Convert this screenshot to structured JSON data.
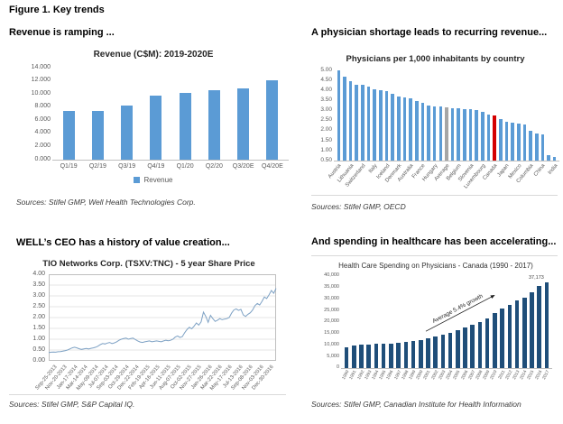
{
  "figure_title": "Figure 1. Key trends",
  "quadrants": {
    "revenue": {
      "heading": "Revenue is ramping ...",
      "source": "Sources: Stifel GMP, Well Health Technologies Corp."
    },
    "physicians": {
      "heading": "A physician shortage leads to recurring revenue...",
      "source": "Sources: Stifel GMP, OECD"
    },
    "share_price": {
      "heading": "WELL’s CEO has a history of value creation...",
      "source": "Sources: Stifel GMP, S&P Capital IQ."
    },
    "health_spending": {
      "heading": "And spending in healthcare has been accelerating...",
      "source": "Sources: Stifel GMP, Canadian Institute for Health Information"
    }
  },
  "chart_data": [
    {
      "type": "bar",
      "title": "Revenue (C$M): 2019-2020E",
      "categories": [
        "Q1/19",
        "Q2/19",
        "Q3/19",
        "Q4/19",
        "Q1/20",
        "Q2/20",
        "Q3/20E",
        "Q4/20E"
      ],
      "values": [
        7.4,
        7.4,
        8.2,
        9.8,
        10.2,
        10.6,
        10.9,
        12.1
      ],
      "ylim": [
        0,
        14
      ],
      "ytick_labels": [
        "0.000",
        "2.000",
        "4.000",
        "6.000",
        "8.000",
        "10.000",
        "12.000",
        "14.000"
      ],
      "legend": [
        "Revenue"
      ],
      "bar_color": "#5B9BD5",
      "legend_position": "bottom"
    },
    {
      "type": "bar",
      "title": "Physicians per 1,000 inhabitants by country",
      "ylim": [
        0.5,
        5.0
      ],
      "ytick_labels": [
        "0.50",
        "1.00",
        "1.50",
        "2.00",
        "2.50",
        "3.00",
        "3.50",
        "4.00",
        "4.50",
        "5.00"
      ],
      "bar_color": "#5B9BD5",
      "bars": [
        {
          "label": "Austria",
          "value": 5.0
        },
        {
          "label": "",
          "value": 4.7
        },
        {
          "label": "Lithuania",
          "value": 4.45
        },
        {
          "label": "",
          "value": 4.3
        },
        {
          "label": "Switzerland",
          "value": 4.28
        },
        {
          "label": "",
          "value": 4.2
        },
        {
          "label": "Italy",
          "value": 4.05
        },
        {
          "label": "",
          "value": 4.0
        },
        {
          "label": "Iceland",
          "value": 3.95
        },
        {
          "label": "",
          "value": 3.85
        },
        {
          "label": "Denmark",
          "value": 3.7
        },
        {
          "label": "",
          "value": 3.65
        },
        {
          "label": "Australia",
          "value": 3.6
        },
        {
          "label": "",
          "value": 3.45
        },
        {
          "label": "France",
          "value": 3.4
        },
        {
          "label": "",
          "value": 3.25
        },
        {
          "label": "Hungary",
          "value": 3.2
        },
        {
          "label": "",
          "value": 3.2
        },
        {
          "label": "Average",
          "value": 3.15,
          "color": "#A6A6A6"
        },
        {
          "label": "",
          "value": 3.1
        },
        {
          "label": "Belgium",
          "value": 3.1
        },
        {
          "label": "",
          "value": 3.05
        },
        {
          "label": "Slovenia",
          "value": 3.05
        },
        {
          "label": "",
          "value": 3.0
        },
        {
          "label": "Luxembourg",
          "value": 2.95
        },
        {
          "label": "",
          "value": 2.8
        },
        {
          "label": "Canada",
          "value": 2.75,
          "color": "#D40000"
        },
        {
          "label": "",
          "value": 2.55
        },
        {
          "label": "Japan",
          "value": 2.45
        },
        {
          "label": "",
          "value": 2.4
        },
        {
          "label": "Mexico",
          "value": 2.35
        },
        {
          "label": "",
          "value": 2.3
        },
        {
          "label": "Columbia",
          "value": 2.0
        },
        {
          "label": "",
          "value": 1.85
        },
        {
          "label": "China",
          "value": 1.8
        },
        {
          "label": "",
          "value": 0.75
        },
        {
          "label": "India",
          "value": 0.7
        }
      ]
    },
    {
      "type": "line",
      "title": "TIO Networks Corp. (TSXV:TNC) - 5 year Share Price",
      "ylim": [
        0,
        4
      ],
      "ytick_labels": [
        "0.00",
        "0.50",
        "1.00",
        "1.50",
        "2.00",
        "2.50",
        "3.00",
        "3.50",
        "4.00"
      ],
      "x_labels": [
        "Sep-25-2013",
        "Nov-20-2013",
        "Jan-17-2014",
        "Mar-14-2014",
        "May-09-2014",
        "Jul-07-2014",
        "Sep-03-2014",
        "Oct-29-2014",
        "Dec-22-2014",
        "Feb-19-2015",
        "Apr-16-2015",
        "Jun-11-2015",
        "Aug-07-2015",
        "Oct-02-2015",
        "Nov-27-2015",
        "Jan-26-2016",
        "Mar-22-2016",
        "May-17-2016",
        "Jul-13-2016",
        "Sep-08-2016",
        "Nov-03-2016",
        "Dec-30-2016"
      ],
      "values": [
        0.38,
        0.4,
        0.41,
        0.4,
        0.42,
        0.43,
        0.45,
        0.47,
        0.5,
        0.55,
        0.6,
        0.63,
        0.6,
        0.56,
        0.53,
        0.55,
        0.57,
        0.55,
        0.58,
        0.6,
        0.63,
        0.68,
        0.75,
        0.8,
        0.78,
        0.82,
        0.85,
        0.8,
        0.83,
        0.88,
        0.95,
        1.0,
        1.03,
        1.05,
        1.0,
        1.03,
        1.05,
        0.98,
        0.92,
        0.87,
        0.85,
        0.88,
        0.9,
        0.92,
        0.88,
        0.9,
        0.92,
        0.9,
        0.88,
        0.92,
        0.95,
        0.93,
        0.95,
        1.0,
        1.1,
        1.15,
        1.08,
        1.12,
        1.3,
        1.45,
        1.55,
        1.48,
        1.6,
        1.75,
        1.65,
        1.8,
        2.25,
        2.05,
        1.78,
        2.1,
        1.95,
        1.82,
        1.88,
        1.95,
        1.9,
        1.93,
        1.95,
        2.0,
        2.2,
        2.35,
        2.4,
        2.33,
        2.38,
        2.12,
        2.05,
        2.15,
        2.22,
        2.35,
        2.55,
        2.65,
        2.58,
        2.75,
        2.95,
        2.88,
        3.05,
        3.25,
        3.12,
        3.35
      ],
      "line_color": "#7DA1C4",
      "grid": true
    },
    {
      "type": "bar",
      "title": "Health Care Spending on Physicians - Canada (1990 - 2017)",
      "categories": [
        "1990",
        "1991",
        "1992",
        "1993",
        "1994",
        "1995",
        "1996",
        "1997",
        "1998",
        "1999",
        "2000",
        "2001",
        "2002",
        "2003",
        "2004",
        "2005",
        "2006",
        "2007",
        "2008",
        "2009",
        "2010",
        "2011",
        "2012",
        "2013",
        "2014",
        "2015",
        "2016",
        "2017"
      ],
      "values": [
        9000,
        10000,
        10300,
        10300,
        10400,
        10600,
        10700,
        10900,
        11200,
        11700,
        12200,
        13000,
        13800,
        14600,
        15400,
        16400,
        17500,
        18700,
        20100,
        21600,
        23900,
        25900,
        27500,
        29300,
        30400,
        33000,
        35800,
        37173
      ],
      "ylim": [
        0,
        40000
      ],
      "ytick_labels": [
        "0",
        "5,000",
        "10,000",
        "15,000",
        "20,000",
        "25,000",
        "30,000",
        "35,000",
        "40,000"
      ],
      "bar_color": "#1F4E79",
      "last_value_label": "37,173",
      "annotation": "Average 5.4% growth"
    }
  ]
}
